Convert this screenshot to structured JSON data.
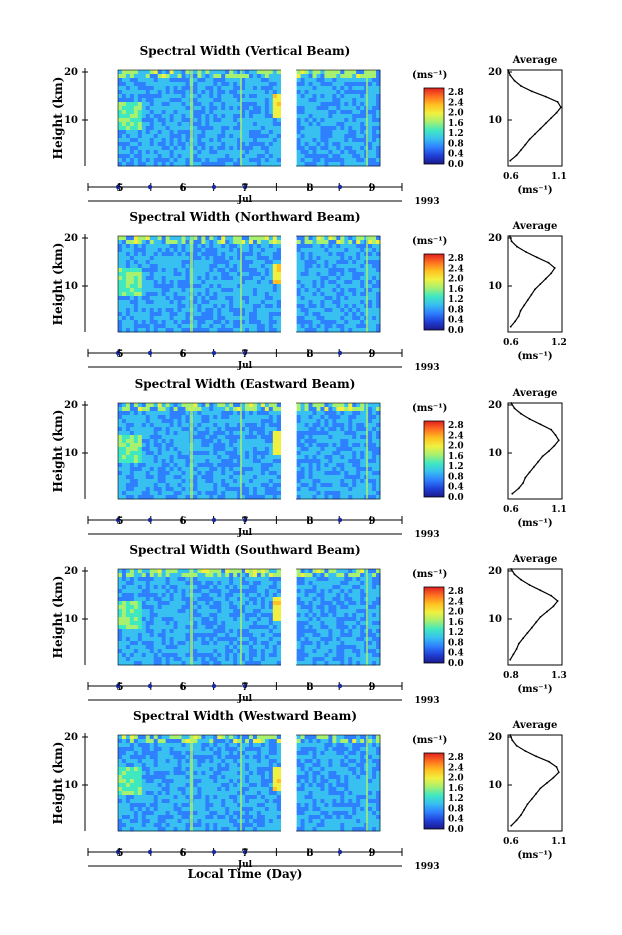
{
  "figure": {
    "xaxis_label": "Local Time (Day)",
    "colorbar_unit": "(ms⁻¹)",
    "colorbar_ticks": [
      "2.8",
      "2.4",
      "2.0",
      "1.6",
      "1.2",
      "0.8",
      "0.4",
      "0.0"
    ],
    "colormap": [
      "#1a1a8c",
      "#2040d8",
      "#2f80ff",
      "#38c0f0",
      "#40e8c0",
      "#a8f070",
      "#f0f040",
      "#ffc020",
      "#ff7020",
      "#e02020"
    ],
    "gap_color": "#ffffff"
  },
  "chart_data": [
    {
      "type": "heatmap",
      "title": "Spectral Width (Vertical Beam)",
      "ylabel": "Height (km)",
      "yticks": [
        "20",
        "10"
      ],
      "ylim": [
        2,
        20
      ],
      "date_ticks": [
        "5",
        "6",
        "7",
        "8",
        "9"
      ],
      "month": "Jul",
      "year": "1993",
      "profile": {
        "title": "Average",
        "xlabel": "(ms⁻¹)",
        "xticks": [
          "0.6",
          "1.1"
        ],
        "xlim": [
          0.6,
          1.1
        ],
        "heights": [
          3,
          4,
          5,
          6,
          7,
          8,
          9,
          10,
          11,
          12,
          13,
          14,
          15,
          16,
          17,
          18,
          19,
          20
        ],
        "values": [
          0.62,
          0.68,
          0.72,
          0.76,
          0.8,
          0.85,
          0.9,
          0.95,
          1.0,
          1.05,
          1.09,
          1.06,
          0.95,
          0.82,
          0.72,
          0.66,
          0.62,
          0.6
        ]
      }
    },
    {
      "type": "heatmap",
      "title": "Spectral Width (Northward Beam)",
      "ylabel": "Height (km)",
      "yticks": [
        "20",
        "10"
      ],
      "ylim": [
        2,
        20
      ],
      "date_ticks": [
        "5",
        "6",
        "7",
        "8",
        "9"
      ],
      "month": "Jul",
      "year": "1993",
      "profile": {
        "title": "Average",
        "xlabel": "(ms⁻¹)",
        "xticks": [
          "0.6",
          "1.2"
        ],
        "xlim": [
          0.6,
          1.2
        ],
        "heights": [
          3,
          4,
          5,
          6,
          7,
          8,
          9,
          10,
          11,
          12,
          13,
          14,
          15,
          16,
          17,
          18,
          19,
          20
        ],
        "values": [
          0.63,
          0.68,
          0.72,
          0.74,
          0.78,
          0.82,
          0.86,
          0.9,
          0.96,
          1.02,
          1.08,
          1.12,
          1.05,
          0.92,
          0.8,
          0.7,
          0.64,
          0.62
        ]
      }
    },
    {
      "type": "heatmap",
      "title": "Spectral Width (Eastward Beam)",
      "ylabel": "Height (km)",
      "yticks": [
        "20",
        "10"
      ],
      "ylim": [
        2,
        20
      ],
      "date_ticks": [
        "5",
        "6",
        "7",
        "8",
        "9"
      ],
      "month": "Jul",
      "year": "1993",
      "profile": {
        "title": "Average",
        "xlabel": "(ms⁻¹)",
        "xticks": [
          "0.6",
          "1.1"
        ],
        "xlim": [
          0.6,
          1.1
        ],
        "heights": [
          3,
          4,
          5,
          6,
          7,
          8,
          9,
          10,
          11,
          12,
          13,
          14,
          15,
          16,
          17,
          18,
          19,
          20
        ],
        "values": [
          0.64,
          0.7,
          0.74,
          0.76,
          0.8,
          0.84,
          0.88,
          0.92,
          0.98,
          1.03,
          1.07,
          1.04,
          1.0,
          0.9,
          0.8,
          0.72,
          0.66,
          0.63
        ]
      }
    },
    {
      "type": "heatmap",
      "title": "Spectral Width (Southward Beam)",
      "ylabel": "Height (km)",
      "yticks": [
        "20",
        "10"
      ],
      "ylim": [
        2,
        20
      ],
      "date_ticks": [
        "5",
        "6",
        "7",
        "8",
        "9"
      ],
      "month": "Jul",
      "year": "1993",
      "profile": {
        "title": "Average",
        "xlabel": "(ms⁻¹)",
        "xticks": [
          "0.8",
          "1.3"
        ],
        "xlim": [
          0.8,
          1.3
        ],
        "heights": [
          3,
          4,
          5,
          6,
          7,
          8,
          9,
          10,
          11,
          12,
          13,
          14,
          15,
          16,
          17,
          18,
          19,
          20
        ],
        "values": [
          0.82,
          0.85,
          0.88,
          0.9,
          0.94,
          0.98,
          1.02,
          1.06,
          1.1,
          1.16,
          1.22,
          1.26,
          1.2,
          1.1,
          1.0,
          0.92,
          0.86,
          0.83
        ]
      }
    },
    {
      "type": "heatmap",
      "title": "Spectral Width (Westward Beam)",
      "ylabel": "Height (km)",
      "yticks": [
        "20",
        "10"
      ],
      "ylim": [
        2,
        20
      ],
      "date_ticks": [
        "5",
        "6",
        "7",
        "8",
        "9"
      ],
      "month": "Jul",
      "year": "1993",
      "profile": {
        "title": "Average",
        "xlabel": "(ms⁻¹)",
        "xticks": [
          "0.6",
          "1.1"
        ],
        "xlim": [
          0.6,
          1.1
        ],
        "heights": [
          3,
          4,
          5,
          6,
          7,
          8,
          9,
          10,
          11,
          12,
          13,
          14,
          15,
          16,
          17,
          18,
          19,
          20
        ],
        "values": [
          0.63,
          0.68,
          0.72,
          0.75,
          0.78,
          0.82,
          0.86,
          0.9,
          0.96,
          1.02,
          1.07,
          1.05,
          0.98,
          0.86,
          0.76,
          0.68,
          0.64,
          0.62
        ]
      }
    }
  ]
}
